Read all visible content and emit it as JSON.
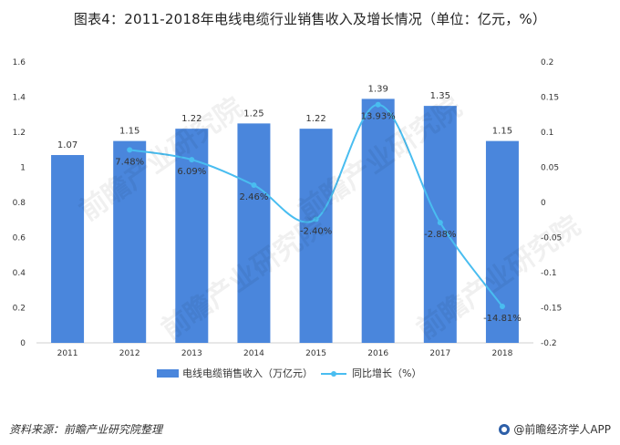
{
  "title": "图表4：2011-2018年电线电缆行业销售收入及增长情况（单位：亿元，%）",
  "source": "资料来源：前瞻产业研究院整理",
  "brand": "@前瞻经济学人APP",
  "watermark": "前瞻产业研究院",
  "colors": {
    "bar": "#4a86dc",
    "line": "#49bdf0",
    "axis": "#d0d0d0",
    "text": "#333333"
  },
  "chart_data": {
    "type": "bar",
    "categories": [
      "2011",
      "2012",
      "2013",
      "2014",
      "2015",
      "2016",
      "2017",
      "2018"
    ],
    "series": [
      {
        "name": "电线电缆销售收入（万亿元）",
        "type": "bar",
        "axis": "left",
        "values": [
          1.07,
          1.15,
          1.22,
          1.25,
          1.22,
          1.39,
          1.35,
          1.15
        ],
        "labels": [
          "1.07",
          "1.15",
          "1.22",
          "1.25",
          "1.22",
          "1.39",
          "1.35",
          "1.15"
        ]
      },
      {
        "name": "同比增长（%）",
        "type": "line",
        "axis": "right",
        "values": [
          null,
          0.0748,
          0.0609,
          0.0246,
          -0.024,
          0.1393,
          -0.0288,
          -0.1481
        ],
        "labels": [
          "",
          "7.48%",
          "6.09%",
          "2.46%",
          "-2.40%",
          "13.93%",
          "-2.88%",
          "-14.81%"
        ]
      }
    ],
    "ylim": [
      0,
      1.6
    ],
    "yticks": [
      "0",
      "0.2",
      "0.4",
      "0.6",
      "0.8",
      "1",
      "1.2",
      "1.4",
      "1.6"
    ],
    "y2lim": [
      -0.2,
      0.2
    ],
    "y2ticks": [
      "-0.2",
      "-0.15",
      "-0.1",
      "-0.05",
      "0",
      "0.05",
      "0.1",
      "0.15",
      "0.2"
    ],
    "legend_position": "bottom",
    "grid": false
  }
}
